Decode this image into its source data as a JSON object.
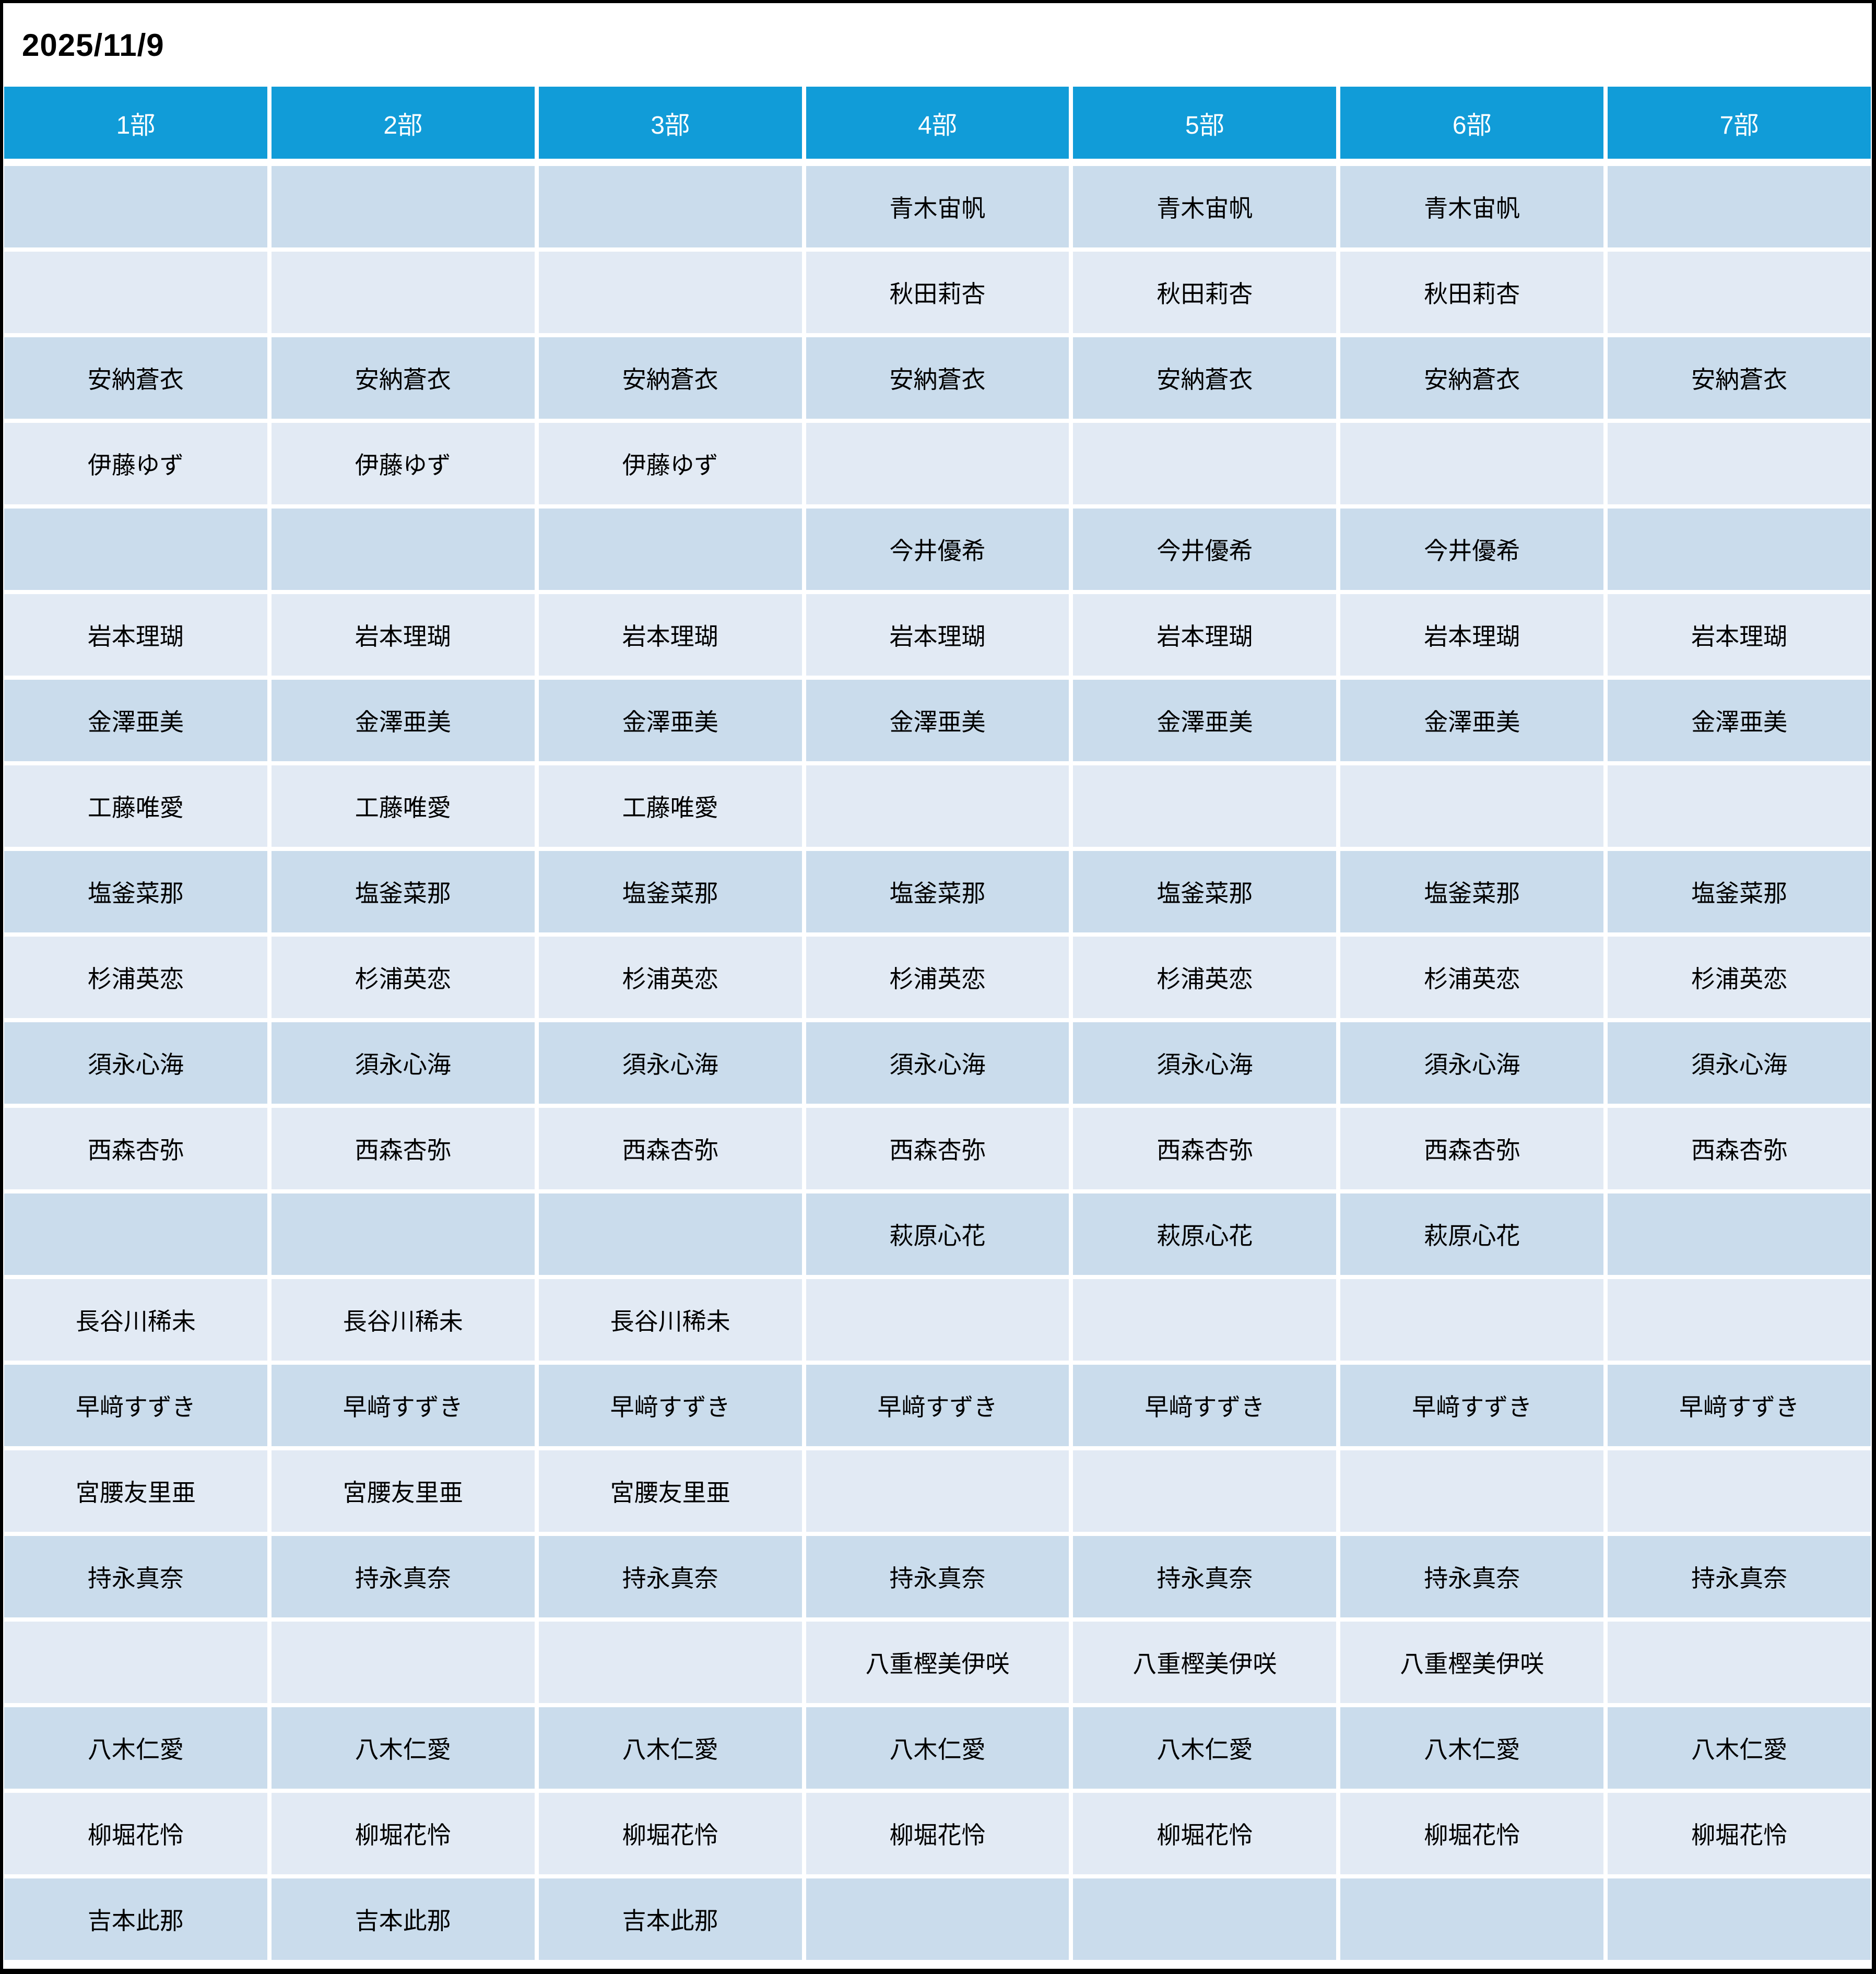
{
  "page": {
    "date": "2025/11/9"
  },
  "table": {
    "columns": [
      "1部",
      "2部",
      "3部",
      "4部",
      "5部",
      "6部",
      "7部"
    ],
    "rows": [
      {
        "name": "青木宙帆",
        "parts": [
          false,
          false,
          false,
          true,
          true,
          true,
          false
        ]
      },
      {
        "name": "秋田莉杏",
        "parts": [
          false,
          false,
          false,
          true,
          true,
          true,
          false
        ]
      },
      {
        "name": "安納蒼衣",
        "parts": [
          true,
          true,
          true,
          true,
          true,
          true,
          true
        ]
      },
      {
        "name": "伊藤ゆず",
        "parts": [
          true,
          true,
          true,
          false,
          false,
          false,
          false
        ]
      },
      {
        "name": "今井優希",
        "parts": [
          false,
          false,
          false,
          true,
          true,
          true,
          false
        ]
      },
      {
        "name": "岩本理瑚",
        "parts": [
          true,
          true,
          true,
          true,
          true,
          true,
          true
        ]
      },
      {
        "name": "金澤亜美",
        "parts": [
          true,
          true,
          true,
          true,
          true,
          true,
          true
        ]
      },
      {
        "name": "工藤唯愛",
        "parts": [
          true,
          true,
          true,
          false,
          false,
          false,
          false
        ]
      },
      {
        "name": "塩釜菜那",
        "parts": [
          true,
          true,
          true,
          true,
          true,
          true,
          true
        ]
      },
      {
        "name": "杉浦英恋",
        "parts": [
          true,
          true,
          true,
          true,
          true,
          true,
          true
        ]
      },
      {
        "name": "須永心海",
        "parts": [
          true,
          true,
          true,
          true,
          true,
          true,
          true
        ]
      },
      {
        "name": "西森杏弥",
        "parts": [
          true,
          true,
          true,
          true,
          true,
          true,
          true
        ]
      },
      {
        "name": "萩原心花",
        "parts": [
          false,
          false,
          false,
          true,
          true,
          true,
          false
        ]
      },
      {
        "name": "長谷川稀未",
        "parts": [
          true,
          true,
          true,
          false,
          false,
          false,
          false
        ]
      },
      {
        "name": "早﨑すずき",
        "parts": [
          true,
          true,
          true,
          true,
          true,
          true,
          true
        ]
      },
      {
        "name": "宮腰友里亜",
        "parts": [
          true,
          true,
          true,
          false,
          false,
          false,
          false
        ]
      },
      {
        "name": "持永真奈",
        "parts": [
          true,
          true,
          true,
          true,
          true,
          true,
          true
        ]
      },
      {
        "name": "八重樫美伊咲",
        "parts": [
          false,
          false,
          false,
          true,
          true,
          true,
          false
        ]
      },
      {
        "name": "八木仁愛",
        "parts": [
          true,
          true,
          true,
          true,
          true,
          true,
          true
        ]
      },
      {
        "name": "柳堀花怜",
        "parts": [
          true,
          true,
          true,
          true,
          true,
          true,
          true
        ]
      },
      {
        "name": "吉本此那",
        "parts": [
          true,
          true,
          true,
          false,
          false,
          false,
          false
        ]
      }
    ],
    "colors": {
      "header_bg": "#119cd8",
      "header_text": "#ffffff",
      "band_dark": "#cadcec",
      "band_light": "#e2eaf4",
      "cell_text": "#000000",
      "frame": "#000000"
    }
  }
}
